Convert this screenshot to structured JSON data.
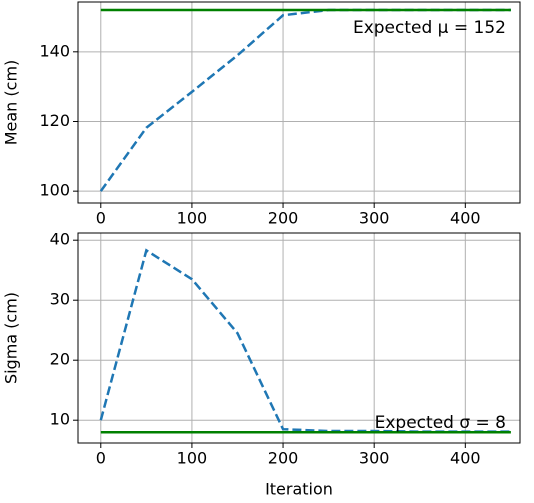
{
  "chart_data": [
    {
      "type": "line",
      "ylabel": "Mean (cm)",
      "x": [
        0,
        50,
        100,
        150,
        200,
        250,
        300,
        350,
        400,
        450
      ],
      "series": [
        {
          "color": "#1f77b4",
          "dashed": true,
          "values": [
            100,
            118.2,
            128.5,
            139,
            150.5,
            152,
            152,
            152,
            152,
            152
          ]
        },
        {
          "color": "#008000",
          "dashed": false,
          "values": [
            152,
            152,
            152,
            152,
            152,
            152,
            152,
            152,
            152,
            152
          ]
        }
      ],
      "annotation": "Expected μ = 152",
      "xlim": [
        -25,
        460
      ],
      "ylim": [
        96.6,
        154.3
      ],
      "xticks": [
        0,
        100,
        200,
        300,
        400
      ],
      "yticks": [
        100,
        120,
        140
      ],
      "grid": true
    },
    {
      "type": "line",
      "ylabel": "Sigma (cm)",
      "xlabel": "Iteration",
      "x": [
        0,
        50,
        100,
        150,
        200,
        250,
        300,
        350,
        400,
        450
      ],
      "series": [
        {
          "color": "#1f77b4",
          "dashed": true,
          "values": [
            10,
            38.3,
            33.5,
            24.5,
            8.5,
            8.2,
            8.2,
            8.1,
            8.1,
            8.1
          ]
        },
        {
          "color": "#008000",
          "dashed": false,
          "values": [
            8,
            8,
            8,
            8,
            8,
            8,
            8,
            8,
            8,
            8
          ]
        }
      ],
      "annotation": "Expected σ = 8",
      "xlim": [
        -25,
        460
      ],
      "ylim": [
        6.2,
        41.2
      ],
      "xticks": [
        0,
        100,
        200,
        300,
        400
      ],
      "yticks": [
        10,
        20,
        30,
        40
      ],
      "grid": true
    }
  ]
}
